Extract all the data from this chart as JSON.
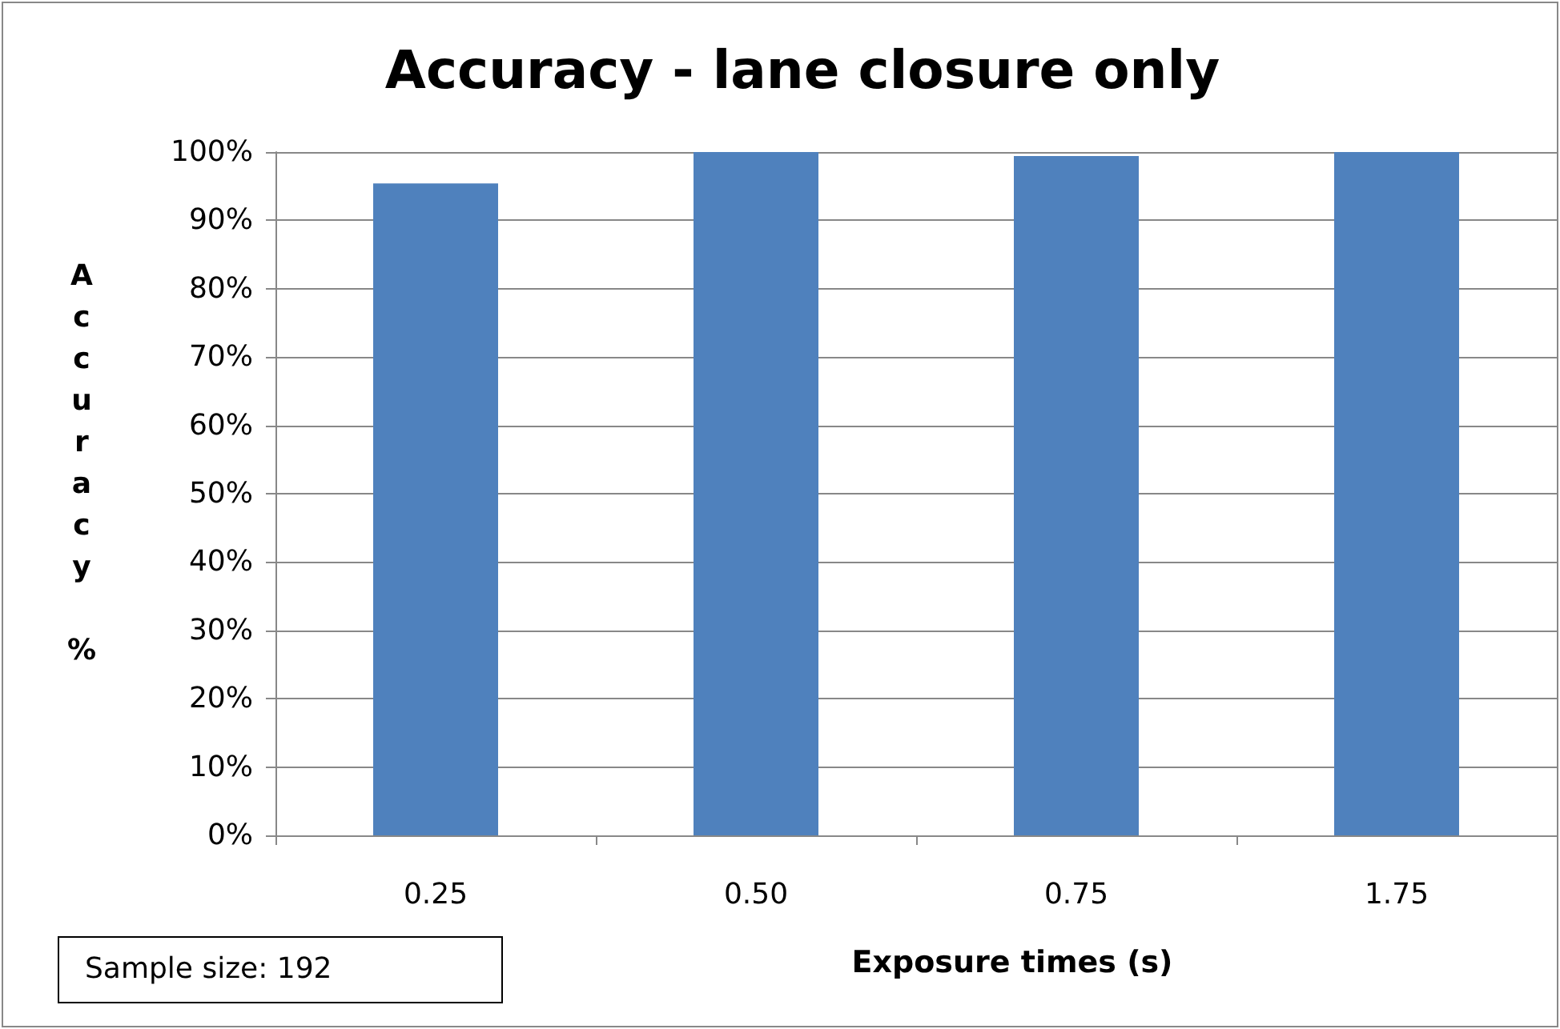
{
  "chart_data": {
    "type": "bar",
    "title": "Accuracy - lane closure only",
    "xlabel": "Exposure times (s)",
    "ylabel": "Accuracy %",
    "categories": [
      "0.25",
      "0.50",
      "0.75",
      "1.75"
    ],
    "values": [
      95.4,
      100,
      99.4,
      100
    ],
    "color": "#4f81bd",
    "ylim": [
      0,
      100
    ],
    "yticks": [
      {
        "value": 0,
        "label": "0%"
      },
      {
        "value": 10,
        "label": "10%"
      },
      {
        "value": 20,
        "label": "20%"
      },
      {
        "value": 30,
        "label": "30%"
      },
      {
        "value": 40,
        "label": "40%"
      },
      {
        "value": 50,
        "label": "50%"
      },
      {
        "value": 60,
        "label": "60%"
      },
      {
        "value": 70,
        "label": "70%"
      },
      {
        "value": 80,
        "label": "80%"
      },
      {
        "value": 90,
        "label": "90%"
      },
      {
        "value": 100,
        "label": "100%"
      }
    ],
    "grid": "y",
    "annotations": [
      "Sample size: 192"
    ]
  }
}
